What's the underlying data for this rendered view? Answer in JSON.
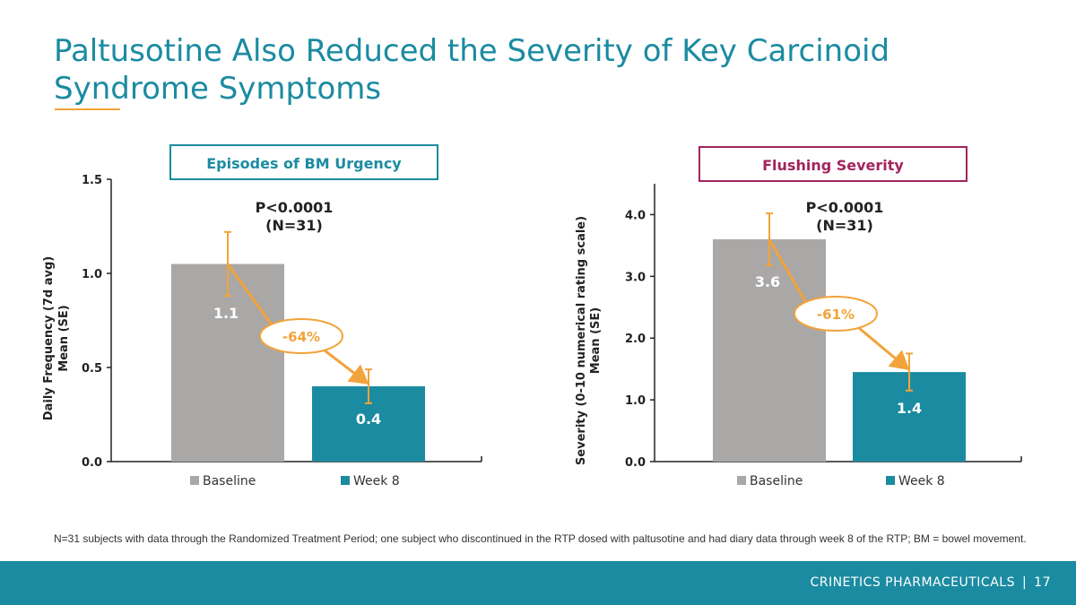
{
  "slide": {
    "title": "Paltusotine Also Reduced the Severity of Key Carcinoid Syndrome Symptoms",
    "footnote": "N=31 subjects with data through the Randomized Treatment Period; one subject who discontinued in the RTP dosed with paltusotine and had diary data through week 8 of the RTP; BM = bowel movement.",
    "company": "CRINETICS PHARMACEUTICALS",
    "separator": "|",
    "page_number": "17"
  },
  "colors": {
    "title": "#1b8ba1",
    "accent_orange": "#f2a33a",
    "baseline_bar": "#aaa7a7",
    "week8_bar": "#1b8ba1",
    "flushing_title": "#a3245c",
    "footer_bar": "#1b8ba1"
  },
  "chart_data": [
    {
      "type": "bar",
      "title": "Episodes of BM Urgency",
      "ylabel_line1": "Daily Frequency (7d avg)",
      "ylabel_line2": "Mean (SE)",
      "ylim": [
        0,
        1.5
      ],
      "yticks": [
        0.0,
        0.5,
        1.0,
        1.5
      ],
      "ytick_labels": [
        "0.0",
        "0.5",
        "1.0",
        "1.5"
      ],
      "categories": [
        "Baseline",
        "Week 8"
      ],
      "values": [
        1.05,
        0.4
      ],
      "value_labels": [
        "1.1",
        "0.4"
      ],
      "error": [
        0.17,
        0.09
      ],
      "p_value": "P<0.0001",
      "n_label": "(N=31)",
      "change_label": "-64%",
      "legend": [
        "Baseline",
        "Week 8"
      ],
      "legend_position": "bottom"
    },
    {
      "type": "bar",
      "title": "Flushing Severity",
      "ylabel_line1": "Severity (0-10 numerical rating scale)",
      "ylabel_line2": "Mean (SE)",
      "ylim": [
        0,
        4.5
      ],
      "yticks": [
        0.0,
        1.0,
        2.0,
        3.0,
        4.0
      ],
      "ytick_labels": [
        "0.0",
        "1.0",
        "2.0",
        "3.0",
        "4.0"
      ],
      "categories": [
        "Baseline",
        "Week 8"
      ],
      "values": [
        3.6,
        1.45
      ],
      "value_labels": [
        "3.6",
        "1.4"
      ],
      "error": [
        0.42,
        0.3
      ],
      "p_value": "P<0.0001",
      "n_label": "(N=31)",
      "change_label": "-61%",
      "legend": [
        "Baseline",
        "Week 8"
      ],
      "legend_position": "bottom"
    }
  ]
}
